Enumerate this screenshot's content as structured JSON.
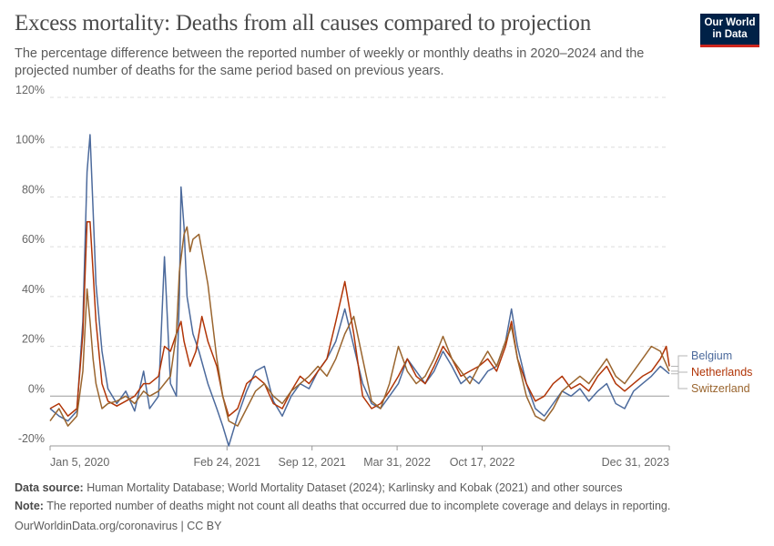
{
  "header": {
    "title": "Excess mortality: Deaths from all causes compared to projection",
    "subtitle": "The percentage difference between the reported number of weekly or monthly deaths in 2020–2024 and the projected number of deaths for the same period based on previous years.",
    "logo_line1": "Our World",
    "logo_line2": "in Data"
  },
  "footer": {
    "source_label": "Data source:",
    "source_text": "Human Mortality Database; World Mortality Dataset (2024); Karlinsky and Kobak (2021) and other sources",
    "note_label": "Note:",
    "note_text": "The reported number of deaths might not count all deaths that occurred due to incomplete coverage and delays in reporting.",
    "credit": "OurWorldinData.org/coronavirus | CC BY"
  },
  "chart_data": {
    "type": "line",
    "x_type": "date",
    "xlim": [
      "2020-01-05",
      "2023-12-31"
    ],
    "ylim": [
      -20,
      120
    ],
    "y_ticks": [
      -20,
      0,
      20,
      40,
      60,
      80,
      100,
      120
    ],
    "y_tick_labels": [
      "-20%",
      "0%",
      "20%",
      "40%",
      "60%",
      "80%",
      "100%",
      "120%"
    ],
    "x_ticks": [
      "2020-01-05",
      "2021-02-24",
      "2021-09-12",
      "2022-03-31",
      "2022-10-17",
      "2023-12-31"
    ],
    "x_tick_labels": [
      "Jan 5, 2020",
      "Feb 24, 2021",
      "Sep 12, 2021",
      "Mar 31, 2022",
      "Oct 17, 2022",
      "Dec 31, 2023"
    ],
    "grid": "horizontal dashed",
    "legend": "right",
    "series": [
      {
        "name": "Belgium",
        "color": "#4c6a9c",
        "points": [
          [
            "2020-01-05",
            -5
          ],
          [
            "2020-01-26",
            -8
          ],
          [
            "2020-02-16",
            -10
          ],
          [
            "2020-03-08",
            -6
          ],
          [
            "2020-03-22",
            30
          ],
          [
            "2020-04-01",
            90
          ],
          [
            "2020-04-08",
            105
          ],
          [
            "2020-04-15",
            75
          ],
          [
            "2020-04-22",
            45
          ],
          [
            "2020-05-06",
            18
          ],
          [
            "2020-05-20",
            3
          ],
          [
            "2020-06-10",
            -3
          ],
          [
            "2020-07-01",
            2
          ],
          [
            "2020-07-22",
            -6
          ],
          [
            "2020-08-12",
            10
          ],
          [
            "2020-08-26",
            -5
          ],
          [
            "2020-09-16",
            0
          ],
          [
            "2020-09-30",
            56
          ],
          [
            "2020-10-14",
            5
          ],
          [
            "2020-10-28",
            0
          ],
          [
            "2020-11-04",
            40
          ],
          [
            "2020-11-08",
            84
          ],
          [
            "2020-11-15",
            68
          ],
          [
            "2020-11-22",
            40
          ],
          [
            "2020-12-06",
            25
          ],
          [
            "2020-12-20",
            18
          ],
          [
            "2021-01-10",
            5
          ],
          [
            "2021-01-31",
            -5
          ],
          [
            "2021-02-14",
            -12
          ],
          [
            "2021-02-28",
            -20
          ],
          [
            "2021-03-21",
            -8
          ],
          [
            "2021-04-11",
            2
          ],
          [
            "2021-05-02",
            10
          ],
          [
            "2021-05-23",
            12
          ],
          [
            "2021-06-13",
            -2
          ],
          [
            "2021-07-04",
            -8
          ],
          [
            "2021-07-25",
            0
          ],
          [
            "2021-08-15",
            5
          ],
          [
            "2021-09-05",
            3
          ],
          [
            "2021-09-26",
            10
          ],
          [
            "2021-10-17",
            15
          ],
          [
            "2021-11-07",
            22
          ],
          [
            "2021-11-28",
            35
          ],
          [
            "2021-12-19",
            20
          ],
          [
            "2022-01-09",
            5
          ],
          [
            "2022-01-30",
            -3
          ],
          [
            "2022-02-20",
            -5
          ],
          [
            "2022-03-13",
            0
          ],
          [
            "2022-04-03",
            5
          ],
          [
            "2022-04-24",
            15
          ],
          [
            "2022-05-15",
            10
          ],
          [
            "2022-06-05",
            5
          ],
          [
            "2022-06-26",
            10
          ],
          [
            "2022-07-17",
            18
          ],
          [
            "2022-08-07",
            12
          ],
          [
            "2022-08-28",
            5
          ],
          [
            "2022-09-18",
            8
          ],
          [
            "2022-10-09",
            5
          ],
          [
            "2022-10-30",
            10
          ],
          [
            "2022-11-20",
            12
          ],
          [
            "2022-12-11",
            22
          ],
          [
            "2022-12-25",
            35
          ],
          [
            "2023-01-08",
            20
          ],
          [
            "2023-01-29",
            5
          ],
          [
            "2023-02-19",
            -5
          ],
          [
            "2023-03-12",
            -8
          ],
          [
            "2023-04-02",
            -3
          ],
          [
            "2023-04-23",
            2
          ],
          [
            "2023-05-14",
            0
          ],
          [
            "2023-06-04",
            3
          ],
          [
            "2023-06-25",
            -2
          ],
          [
            "2023-07-16",
            2
          ],
          [
            "2023-08-06",
            5
          ],
          [
            "2023-08-27",
            -3
          ],
          [
            "2023-09-17",
            -5
          ],
          [
            "2023-10-08",
            2
          ],
          [
            "2023-10-29",
            5
          ],
          [
            "2023-11-19",
            8
          ],
          [
            "2023-12-10",
            12
          ],
          [
            "2023-12-31",
            9
          ]
        ]
      },
      {
        "name": "Netherlands",
        "color": "#b13507",
        "points": [
          [
            "2020-01-05",
            -5
          ],
          [
            "2020-01-26",
            -3
          ],
          [
            "2020-02-16",
            -8
          ],
          [
            "2020-03-08",
            -5
          ],
          [
            "2020-03-22",
            25
          ],
          [
            "2020-04-01",
            70
          ],
          [
            "2020-04-08",
            70
          ],
          [
            "2020-04-15",
            50
          ],
          [
            "2020-04-22",
            30
          ],
          [
            "2020-05-06",
            5
          ],
          [
            "2020-05-20",
            -2
          ],
          [
            "2020-06-10",
            -4
          ],
          [
            "2020-07-01",
            -2
          ],
          [
            "2020-07-22",
            0
          ],
          [
            "2020-08-12",
            5
          ],
          [
            "2020-08-26",
            5
          ],
          [
            "2020-09-16",
            8
          ],
          [
            "2020-09-30",
            20
          ],
          [
            "2020-10-14",
            18
          ],
          [
            "2020-10-28",
            25
          ],
          [
            "2020-11-08",
            30
          ],
          [
            "2020-11-15",
            22
          ],
          [
            "2020-11-29",
            12
          ],
          [
            "2020-12-13",
            18
          ],
          [
            "2020-12-27",
            32
          ],
          [
            "2021-01-10",
            22
          ],
          [
            "2021-01-31",
            12
          ],
          [
            "2021-02-14",
            0
          ],
          [
            "2021-02-28",
            -8
          ],
          [
            "2021-03-21",
            -5
          ],
          [
            "2021-04-11",
            5
          ],
          [
            "2021-05-02",
            8
          ],
          [
            "2021-05-23",
            5
          ],
          [
            "2021-06-13",
            -3
          ],
          [
            "2021-07-04",
            -5
          ],
          [
            "2021-07-25",
            2
          ],
          [
            "2021-08-15",
            8
          ],
          [
            "2021-09-05",
            5
          ],
          [
            "2021-09-26",
            10
          ],
          [
            "2021-10-17",
            15
          ],
          [
            "2021-11-07",
            30
          ],
          [
            "2021-11-28",
            46
          ],
          [
            "2021-12-19",
            25
          ],
          [
            "2022-01-09",
            0
          ],
          [
            "2022-01-30",
            -5
          ],
          [
            "2022-02-20",
            -3
          ],
          [
            "2022-03-13",
            2
          ],
          [
            "2022-04-03",
            8
          ],
          [
            "2022-04-24",
            15
          ],
          [
            "2022-05-15",
            8
          ],
          [
            "2022-06-05",
            5
          ],
          [
            "2022-06-26",
            12
          ],
          [
            "2022-07-17",
            20
          ],
          [
            "2022-08-07",
            15
          ],
          [
            "2022-08-28",
            8
          ],
          [
            "2022-09-18",
            10
          ],
          [
            "2022-10-09",
            12
          ],
          [
            "2022-10-30",
            15
          ],
          [
            "2022-11-20",
            10
          ],
          [
            "2022-12-11",
            20
          ],
          [
            "2022-12-25",
            30
          ],
          [
            "2023-01-08",
            15
          ],
          [
            "2023-01-29",
            5
          ],
          [
            "2023-02-19",
            -2
          ],
          [
            "2023-03-12",
            0
          ],
          [
            "2023-04-02",
            5
          ],
          [
            "2023-04-23",
            8
          ],
          [
            "2023-05-14",
            3
          ],
          [
            "2023-06-04",
            5
          ],
          [
            "2023-06-25",
            2
          ],
          [
            "2023-07-16",
            8
          ],
          [
            "2023-08-06",
            12
          ],
          [
            "2023-08-27",
            5
          ],
          [
            "2023-09-17",
            2
          ],
          [
            "2023-10-08",
            5
          ],
          [
            "2023-10-29",
            8
          ],
          [
            "2023-11-19",
            10
          ],
          [
            "2023-12-10",
            15
          ],
          [
            "2023-12-24",
            20
          ],
          [
            "2023-12-31",
            12
          ]
        ]
      },
      {
        "name": "Switzerland",
        "color": "#9a652e",
        "points": [
          [
            "2020-01-05",
            -10
          ],
          [
            "2020-01-26",
            -5
          ],
          [
            "2020-02-16",
            -12
          ],
          [
            "2020-03-08",
            -8
          ],
          [
            "2020-03-22",
            10
          ],
          [
            "2020-04-01",
            43
          ],
          [
            "2020-04-08",
            30
          ],
          [
            "2020-04-15",
            15
          ],
          [
            "2020-04-22",
            5
          ],
          [
            "2020-05-06",
            -5
          ],
          [
            "2020-05-20",
            -3
          ],
          [
            "2020-06-10",
            -2
          ],
          [
            "2020-07-01",
            0
          ],
          [
            "2020-07-22",
            -3
          ],
          [
            "2020-08-12",
            2
          ],
          [
            "2020-08-26",
            0
          ],
          [
            "2020-09-16",
            2
          ],
          [
            "2020-09-30",
            5
          ],
          [
            "2020-10-14",
            8
          ],
          [
            "2020-10-28",
            25
          ],
          [
            "2020-11-04",
            50
          ],
          [
            "2020-11-15",
            65
          ],
          [
            "2020-11-22",
            68
          ],
          [
            "2020-11-29",
            58
          ],
          [
            "2020-12-06",
            63
          ],
          [
            "2020-12-20",
            65
          ],
          [
            "2021-01-10",
            45
          ],
          [
            "2021-01-31",
            15
          ],
          [
            "2021-02-14",
            0
          ],
          [
            "2021-02-28",
            -10
          ],
          [
            "2021-03-21",
            -12
          ],
          [
            "2021-04-11",
            -5
          ],
          [
            "2021-05-02",
            2
          ],
          [
            "2021-05-23",
            5
          ],
          [
            "2021-06-13",
            0
          ],
          [
            "2021-07-04",
            -3
          ],
          [
            "2021-07-25",
            2
          ],
          [
            "2021-08-15",
            5
          ],
          [
            "2021-09-05",
            8
          ],
          [
            "2021-09-26",
            12
          ],
          [
            "2021-10-17",
            8
          ],
          [
            "2021-11-07",
            15
          ],
          [
            "2021-11-28",
            25
          ],
          [
            "2021-12-19",
            32
          ],
          [
            "2022-01-09",
            15
          ],
          [
            "2022-01-30",
            -2
          ],
          [
            "2022-02-20",
            -5
          ],
          [
            "2022-03-13",
            5
          ],
          [
            "2022-04-03",
            20
          ],
          [
            "2022-04-24",
            10
          ],
          [
            "2022-05-15",
            5
          ],
          [
            "2022-06-05",
            8
          ],
          [
            "2022-06-26",
            15
          ],
          [
            "2022-07-17",
            24
          ],
          [
            "2022-08-07",
            15
          ],
          [
            "2022-08-28",
            10
          ],
          [
            "2022-09-18",
            5
          ],
          [
            "2022-10-09",
            12
          ],
          [
            "2022-10-30",
            18
          ],
          [
            "2022-11-20",
            12
          ],
          [
            "2022-12-11",
            22
          ],
          [
            "2022-12-25",
            28
          ],
          [
            "2023-01-08",
            15
          ],
          [
            "2023-01-29",
            0
          ],
          [
            "2023-02-19",
            -8
          ],
          [
            "2023-03-12",
            -10
          ],
          [
            "2023-04-02",
            -5
          ],
          [
            "2023-04-23",
            2
          ],
          [
            "2023-05-14",
            5
          ],
          [
            "2023-06-04",
            8
          ],
          [
            "2023-06-25",
            5
          ],
          [
            "2023-07-16",
            10
          ],
          [
            "2023-08-06",
            15
          ],
          [
            "2023-08-27",
            8
          ],
          [
            "2023-09-17",
            5
          ],
          [
            "2023-10-08",
            10
          ],
          [
            "2023-10-29",
            15
          ],
          [
            "2023-11-19",
            20
          ],
          [
            "2023-12-10",
            18
          ],
          [
            "2023-12-31",
            10
          ]
        ]
      }
    ]
  }
}
